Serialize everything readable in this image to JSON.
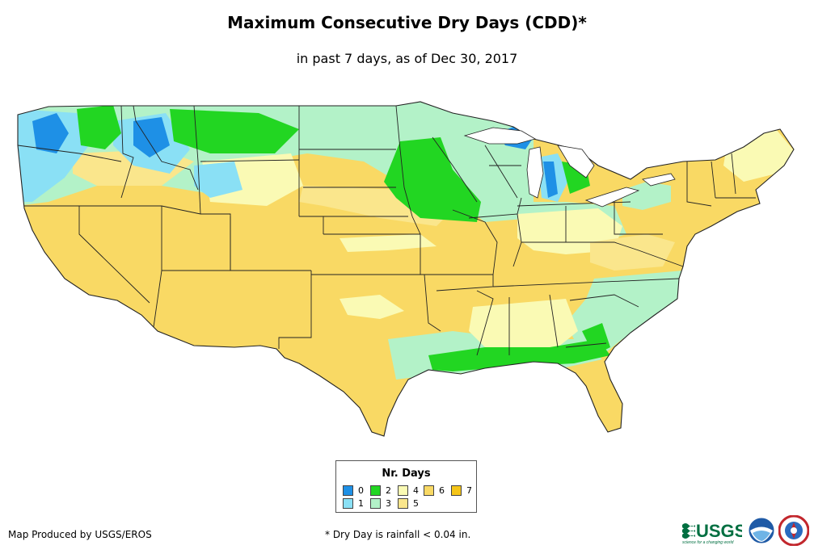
{
  "title": "Maximum Consecutive Dry Days (CDD)*",
  "subtitle": "in past 7 days, as of Dec 30, 2017",
  "legend": {
    "title": "Nr. Days",
    "items": [
      {
        "label": "0",
        "color": "#1e90e6"
      },
      {
        "label": "1",
        "color": "#8ae0f5"
      },
      {
        "label": "2",
        "color": "#22d622"
      },
      {
        "label": "3",
        "color": "#b3f2c8"
      },
      {
        "label": "4",
        "color": "#fafab4"
      },
      {
        "label": "5",
        "color": "#fae68c"
      },
      {
        "label": "6",
        "color": "#f9d964"
      },
      {
        "label": "7",
        "color": "#f5c518"
      }
    ]
  },
  "footer": {
    "producer": "Map Produced by USGS/EROS",
    "note": "* Dry Day is rainfall < 0.04 in."
  },
  "logos": {
    "usgs": "USGS",
    "usgs_tagline": "science for a changing world"
  }
}
